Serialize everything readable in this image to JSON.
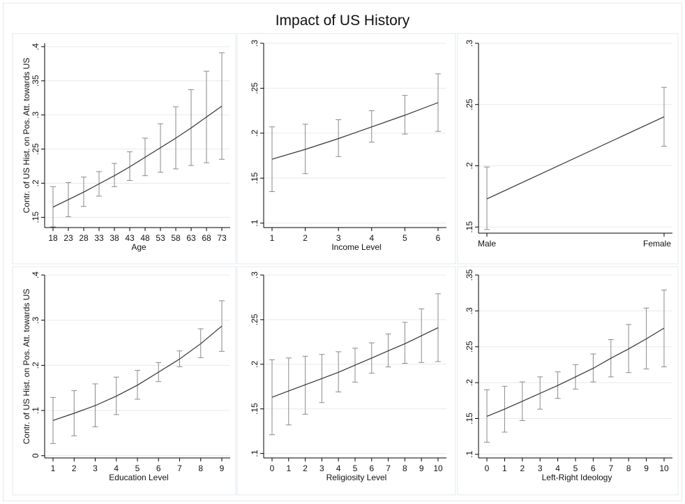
{
  "title": "Impact of US History",
  "chart_data": [
    {
      "type": "line",
      "title": "",
      "xlabel": "Age",
      "ylabel": "Contr. of US Hist. on Pos. Att. towards US",
      "x": [
        18,
        23,
        28,
        33,
        38,
        43,
        48,
        53,
        58,
        63,
        68,
        73
      ],
      "x_ticks": [
        "18",
        "23",
        "28",
        "33",
        "38",
        "43",
        "48",
        "53",
        "58",
        "63",
        "68",
        "73"
      ],
      "y_ticks": [
        ".15",
        ".2",
        ".25",
        ".3",
        ".35",
        ".4"
      ],
      "ylim": [
        0.135,
        0.405
      ],
      "grid": true,
      "series": [
        {
          "values": [
            0.165,
            0.176,
            0.187,
            0.199,
            0.211,
            0.224,
            0.238,
            0.252,
            0.266,
            0.281,
            0.297,
            0.313
          ],
          "ci_low": [
            0.136,
            0.151,
            0.166,
            0.181,
            0.195,
            0.204,
            0.211,
            0.216,
            0.221,
            0.226,
            0.23,
            0.235
          ],
          "ci_high": [
            0.195,
            0.201,
            0.209,
            0.217,
            0.229,
            0.246,
            0.266,
            0.287,
            0.312,
            0.337,
            0.364,
            0.391
          ]
        }
      ]
    },
    {
      "type": "line",
      "title": "",
      "xlabel": "Income Level",
      "ylabel": "",
      "x": [
        1,
        2,
        3,
        4,
        5,
        6
      ],
      "x_ticks": [
        "1",
        "2",
        "3",
        "4",
        "5",
        "6"
      ],
      "y_ticks": [
        ".1",
        ".15",
        ".2",
        ".25",
        ".3"
      ],
      "ylim": [
        0.095,
        0.3
      ],
      "grid": true,
      "series": [
        {
          "values": [
            0.171,
            0.182,
            0.194,
            0.207,
            0.22,
            0.234
          ],
          "ci_low": [
            0.135,
            0.155,
            0.174,
            0.19,
            0.199,
            0.202
          ],
          "ci_high": [
            0.207,
            0.21,
            0.215,
            0.225,
            0.242,
            0.266
          ]
        }
      ]
    },
    {
      "type": "line",
      "title": "",
      "xlabel": "",
      "ylabel": "",
      "x": [
        0,
        1
      ],
      "x_ticks": [
        "Male",
        "Female"
      ],
      "y_ticks": [
        ".15",
        ".2",
        ".25",
        ".3"
      ],
      "ylim": [
        0.145,
        0.3
      ],
      "grid": true,
      "series": [
        {
          "values": [
            0.173,
            0.24
          ],
          "ci_low": [
            0.148,
            0.216
          ],
          "ci_high": [
            0.199,
            0.264
          ]
        }
      ]
    },
    {
      "type": "line",
      "title": "",
      "xlabel": "Education Level",
      "ylabel": "Contr. of US Hist. on Pos. Att. towards US",
      "x": [
        1,
        2,
        3,
        4,
        5,
        6,
        7,
        8,
        9
      ],
      "x_ticks": [
        "1",
        "2",
        "3",
        "4",
        "5",
        "6",
        "7",
        "8",
        "9"
      ],
      "y_ticks": [
        "0",
        ".1",
        ".2",
        ".3",
        ".4"
      ],
      "ylim": [
        -0.005,
        0.4
      ],
      "grid": true,
      "series": [
        {
          "values": [
            0.078,
            0.094,
            0.111,
            0.132,
            0.156,
            0.185,
            0.214,
            0.248,
            0.287
          ],
          "ci_low": [
            0.027,
            0.044,
            0.064,
            0.091,
            0.125,
            0.164,
            0.197,
            0.217,
            0.231
          ],
          "ci_high": [
            0.129,
            0.144,
            0.159,
            0.174,
            0.189,
            0.206,
            0.232,
            0.281,
            0.343
          ]
        }
      ]
    },
    {
      "type": "line",
      "title": "",
      "xlabel": "Religiosity Level",
      "ylabel": "",
      "x": [
        0,
        1,
        2,
        3,
        4,
        5,
        6,
        7,
        8,
        9,
        10
      ],
      "x_ticks": [
        "0",
        "1",
        "2",
        "3",
        "4",
        "5",
        "6",
        "7",
        "8",
        "9",
        "10"
      ],
      "y_ticks": [
        ".1",
        ".15",
        ".2",
        ".25",
        ".3"
      ],
      "ylim": [
        0.095,
        0.3
      ],
      "grid": true,
      "series": [
        {
          "values": [
            0.163,
            0.17,
            0.177,
            0.184,
            0.191,
            0.199,
            0.207,
            0.215,
            0.223,
            0.232,
            0.241
          ],
          "ci_low": [
            0.121,
            0.132,
            0.144,
            0.157,
            0.169,
            0.18,
            0.19,
            0.197,
            0.201,
            0.202,
            0.203
          ],
          "ci_high": [
            0.205,
            0.207,
            0.209,
            0.211,
            0.214,
            0.218,
            0.224,
            0.234,
            0.247,
            0.262,
            0.279
          ]
        }
      ]
    },
    {
      "type": "line",
      "title": "",
      "xlabel": "Left-Right Ideology",
      "ylabel": "",
      "x": [
        0,
        1,
        2,
        3,
        4,
        5,
        6,
        7,
        8,
        9,
        10
      ],
      "x_ticks": [
        "0",
        "1",
        "2",
        "3",
        "4",
        "5",
        "6",
        "7",
        "8",
        "9",
        "10"
      ],
      "y_ticks": [
        ".1",
        ".15",
        ".2",
        ".25",
        ".3",
        ".35"
      ],
      "ylim": [
        0.095,
        0.35
      ],
      "grid": true,
      "series": [
        {
          "values": [
            0.153,
            0.163,
            0.174,
            0.185,
            0.196,
            0.208,
            0.22,
            0.234,
            0.247,
            0.261,
            0.276
          ],
          "ci_low": [
            0.117,
            0.131,
            0.147,
            0.163,
            0.178,
            0.191,
            0.201,
            0.208,
            0.214,
            0.219,
            0.222
          ],
          "ci_high": [
            0.19,
            0.195,
            0.201,
            0.208,
            0.215,
            0.225,
            0.24,
            0.26,
            0.281,
            0.304,
            0.329
          ]
        }
      ]
    }
  ]
}
